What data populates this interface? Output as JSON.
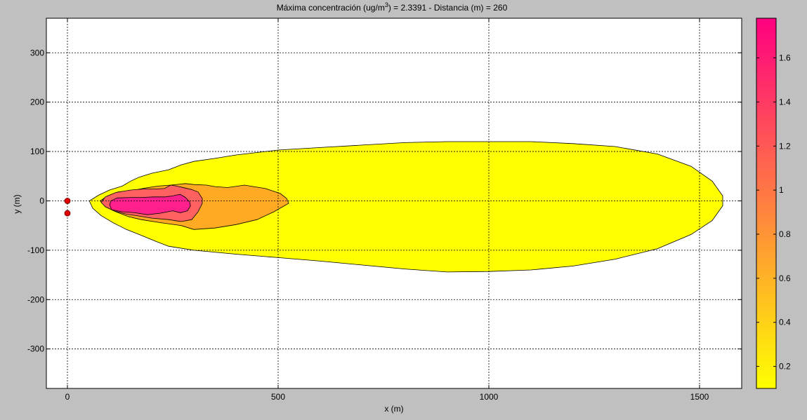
{
  "chart_data": {
    "type": "contour",
    "title_prefix": "Máxima concentración (ug/m",
    "title_sup": "3",
    "title_suffix": ") = 2.3391 - Distancia (m) =   260",
    "xlabel": "x (m)",
    "ylabel": "y (m)",
    "xlim": [
      -50,
      1600
    ],
    "ylim": [
      -380,
      370
    ],
    "x_ticks": [
      0,
      500,
      1000,
      1500
    ],
    "y_ticks": [
      -300,
      -200,
      -100,
      0,
      100,
      200,
      300
    ],
    "grid": true,
    "colorbar": {
      "range": [
        0.1,
        1.78
      ],
      "ticks": [
        0.2,
        0.4,
        0.6,
        0.8,
        1,
        1.2,
        1.4,
        1.6
      ],
      "colormap": "spring-reversed",
      "color_low": "#ffff00",
      "color_high": "#ff0080"
    },
    "sources": [
      {
        "x": 0,
        "y": 0
      },
      {
        "x": 0,
        "y": -25
      }
    ],
    "contours": [
      {
        "level": 0.1,
        "color": "#ffff00",
        "points": [
          [
            52,
            0
          ],
          [
            60,
            -15
          ],
          [
            80,
            -30
          ],
          [
            110,
            -45
          ],
          [
            140,
            -58
          ],
          [
            170,
            -68
          ],
          [
            210,
            -82
          ],
          [
            240,
            -92
          ],
          [
            300,
            -100
          ],
          [
            400,
            -108
          ],
          [
            500,
            -115
          ],
          [
            600,
            -122
          ],
          [
            700,
            -130
          ],
          [
            800,
            -138
          ],
          [
            900,
            -144
          ],
          [
            1000,
            -143
          ],
          [
            1100,
            -140
          ],
          [
            1200,
            -132
          ],
          [
            1300,
            -118
          ],
          [
            1400,
            -97
          ],
          [
            1480,
            -68
          ],
          [
            1530,
            -40
          ],
          [
            1555,
            -10
          ],
          [
            1555,
            10
          ],
          [
            1530,
            40
          ],
          [
            1480,
            70
          ],
          [
            1400,
            95
          ],
          [
            1300,
            110
          ],
          [
            1200,
            116
          ],
          [
            1100,
            120
          ],
          [
            1000,
            120
          ],
          [
            900,
            120
          ],
          [
            800,
            118
          ],
          [
            700,
            113
          ],
          [
            600,
            108
          ],
          [
            500,
            103
          ],
          [
            450,
            98
          ],
          [
            400,
            93
          ],
          [
            350,
            86
          ],
          [
            300,
            80
          ],
          [
            270,
            73
          ],
          [
            240,
            63
          ],
          [
            200,
            56
          ],
          [
            170,
            48
          ],
          [
            150,
            40
          ],
          [
            130,
            30
          ],
          [
            100,
            22
          ],
          [
            75,
            12
          ]
        ]
      },
      {
        "level": 0.7,
        "color": "#ffaa22",
        "points": [
          [
            78,
            0
          ],
          [
            90,
            -12
          ],
          [
            115,
            -22
          ],
          [
            145,
            -32
          ],
          [
            175,
            -38
          ],
          [
            220,
            -44
          ],
          [
            270,
            -50
          ],
          [
            300,
            -58
          ],
          [
            350,
            -55
          ],
          [
            400,
            -48
          ],
          [
            450,
            -38
          ],
          [
            490,
            -22
          ],
          [
            525,
            -5
          ],
          [
            520,
            5
          ],
          [
            505,
            15
          ],
          [
            470,
            25
          ],
          [
            420,
            32
          ],
          [
            380,
            27
          ],
          [
            350,
            29
          ],
          [
            330,
            32
          ],
          [
            300,
            33
          ],
          [
            280,
            35
          ],
          [
            245,
            32
          ],
          [
            215,
            30
          ],
          [
            185,
            26
          ],
          [
            160,
            22
          ],
          [
            120,
            18
          ],
          [
            95,
            10
          ]
        ]
      },
      {
        "level": 1.2,
        "color": "#ff6160",
        "points": [
          [
            80,
            -3
          ],
          [
            90,
            -12
          ],
          [
            110,
            -20
          ],
          [
            140,
            -27
          ],
          [
            165,
            -30
          ],
          [
            200,
            -35
          ],
          [
            240,
            -38
          ],
          [
            270,
            -42
          ],
          [
            295,
            -38
          ],
          [
            310,
            -22
          ],
          [
            320,
            -5
          ],
          [
            320,
            5
          ],
          [
            310,
            18
          ],
          [
            295,
            23
          ],
          [
            270,
            28
          ],
          [
            260,
            30
          ],
          [
            245,
            32
          ],
          [
            230,
            25
          ],
          [
            205,
            24
          ],
          [
            180,
            24
          ],
          [
            150,
            22
          ],
          [
            115,
            17
          ],
          [
            90,
            8
          ]
        ]
      },
      {
        "level": 1.6,
        "color": "#ff208b",
        "points": [
          [
            100,
            -8
          ],
          [
            105,
            -18
          ],
          [
            130,
            -22
          ],
          [
            160,
            -24
          ],
          [
            190,
            -28
          ],
          [
            220,
            -25
          ],
          [
            250,
            -20
          ],
          [
            268,
            -24
          ],
          [
            285,
            -20
          ],
          [
            292,
            -10
          ],
          [
            290,
            -2
          ],
          [
            280,
            7
          ],
          [
            268,
            13
          ],
          [
            260,
            12
          ],
          [
            250,
            10
          ],
          [
            232,
            8
          ],
          [
            205,
            8
          ],
          [
            175,
            7
          ],
          [
            150,
            7
          ],
          [
            118,
            6
          ],
          [
            103,
            0
          ]
        ]
      }
    ]
  }
}
